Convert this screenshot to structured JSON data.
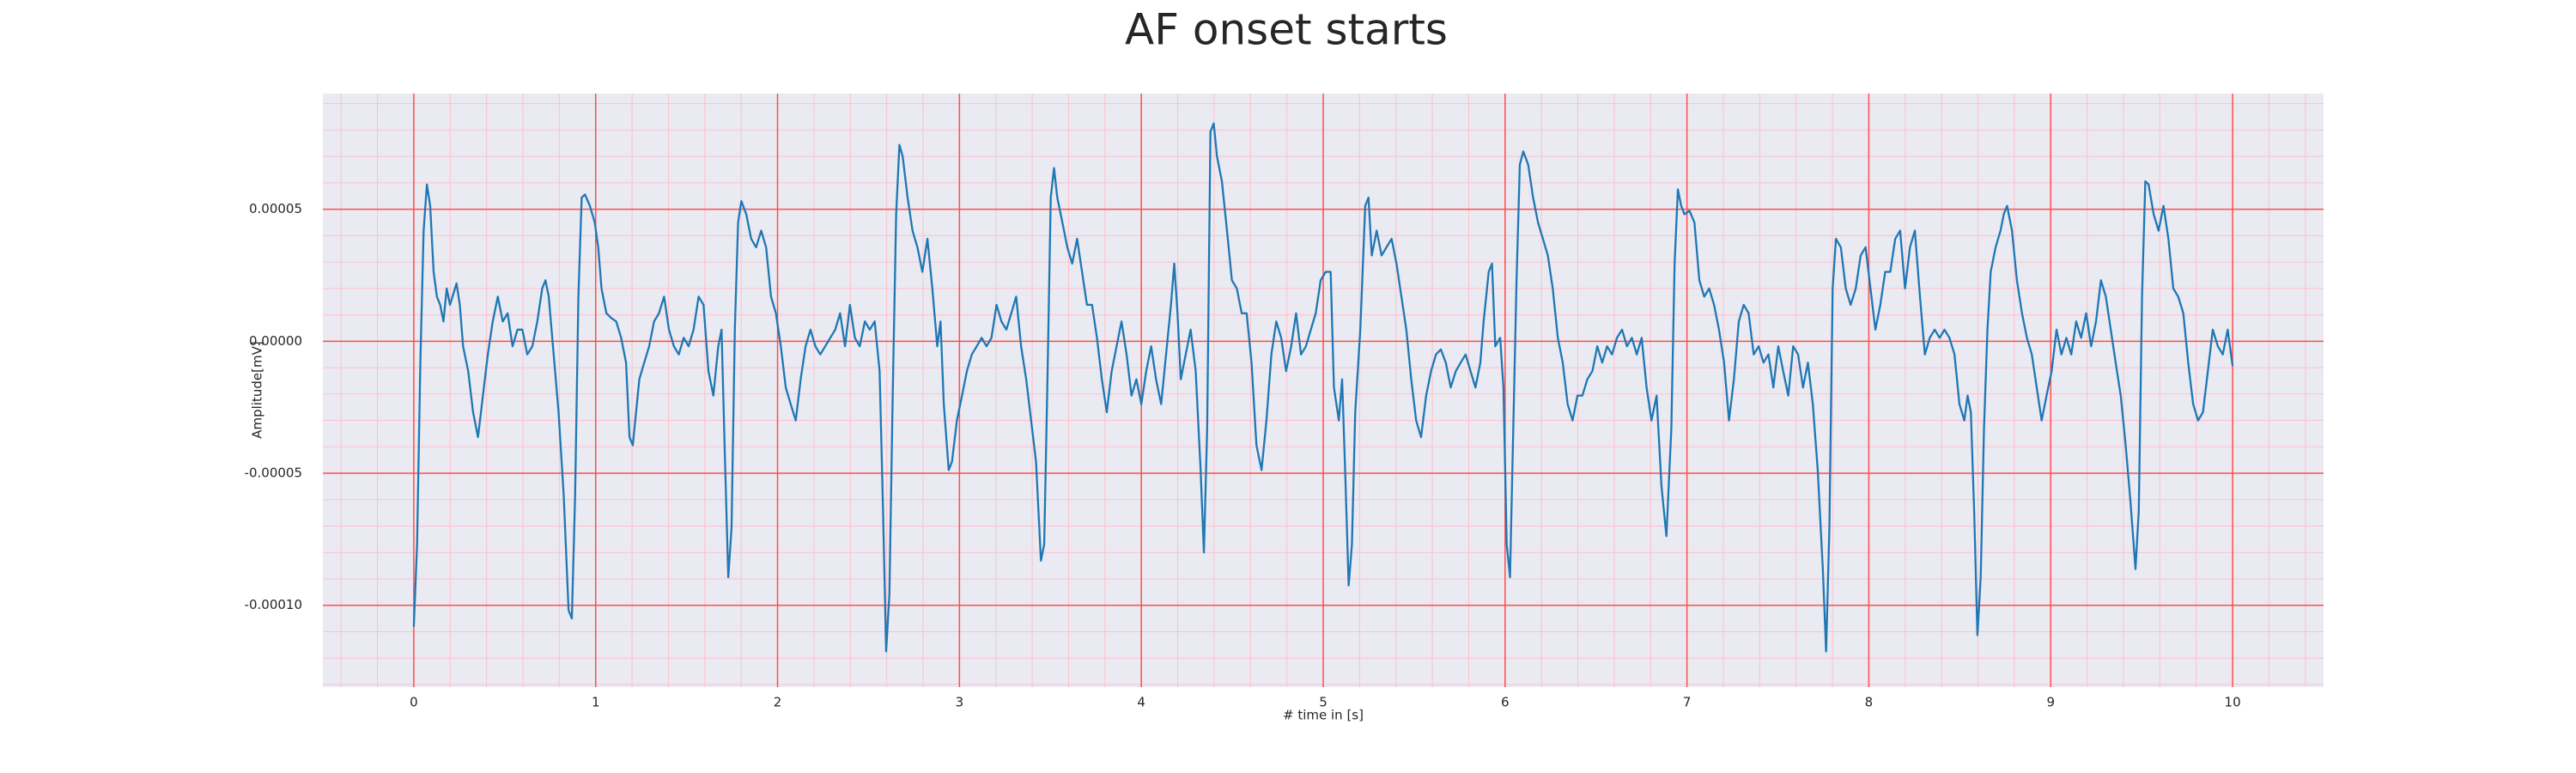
{
  "chart_data": {
    "type": "line",
    "title": "AF onset starts",
    "xlabel": "# time in [s]",
    "ylabel": "Amplitude[mV]",
    "color": "#1f77b4",
    "background": "#eaeaf2",
    "grid": true,
    "grid_color": "#ff4d4d",
    "minor_grid": true,
    "minor_grid_color": "#ffc0cb",
    "minor_divisions": 5,
    "xlim": [
      -0.5,
      10.5
    ],
    "xticks": [
      0,
      1,
      2,
      3,
      4,
      5,
      6,
      7,
      8,
      9,
      10
    ],
    "ylim": [
      -0.000131,
      9.38e-05
    ],
    "yticks": [
      {
        "value": -0.0001,
        "label": "-0.00010"
      },
      {
        "value": -5e-05,
        "label": "-0.00005"
      },
      {
        "value": 0,
        "label": "0.00000"
      },
      {
        "value": 5e-05,
        "label": "0.00005"
      }
    ],
    "x": [
      0,
      0.018,
      0.036,
      0.054,
      0.072,
      0.09,
      0.109,
      0.127,
      0.145,
      0.163,
      0.181,
      0.199,
      0.235,
      0.253,
      0.271,
      0.299,
      0.326,
      0.353,
      0.38,
      0.407,
      0.434,
      0.462,
      0.489,
      0.516,
      0.543,
      0.57,
      0.597,
      0.624,
      0.652,
      0.679,
      0.706,
      0.724,
      0.742,
      0.769,
      0.796,
      0.824,
      0.851,
      0.869,
      0.887,
      0.905,
      0.923,
      0.941,
      0.968,
      0.995,
      1.014,
      1.032,
      1.059,
      1.086,
      1.113,
      1.14,
      1.167,
      1.186,
      1.204,
      1.222,
      1.24,
      1.267,
      1.294,
      1.321,
      1.348,
      1.376,
      1.403,
      1.43,
      1.457,
      1.484,
      1.511,
      1.538,
      1.566,
      1.593,
      1.62,
      1.647,
      1.674,
      1.692,
      1.71,
      1.729,
      1.747,
      1.765,
      1.783,
      1.801,
      1.828,
      1.855,
      1.882,
      1.91,
      1.937,
      1.964,
      1.991,
      2.018,
      2.045,
      2.072,
      2.1,
      2.127,
      2.154,
      2.181,
      2.208,
      2.235,
      2.262,
      2.29,
      2.317,
      2.344,
      2.371,
      2.398,
      2.425,
      2.452,
      2.48,
      2.507,
      2.534,
      2.561,
      2.579,
      2.597,
      2.615,
      2.633,
      2.652,
      2.67,
      2.688,
      2.715,
      2.742,
      2.769,
      2.796,
      2.824,
      2.851,
      2.878,
      2.896,
      2.914,
      2.941,
      2.959,
      2.986,
      3.014,
      3.041,
      3.068,
      3.095,
      3.122,
      3.149,
      3.176,
      3.204,
      3.231,
      3.258,
      3.285,
      3.312,
      3.339,
      3.367,
      3.394,
      3.421,
      3.448,
      3.466,
      3.484,
      3.502,
      3.52,
      3.538,
      3.566,
      3.593,
      3.62,
      3.647,
      3.674,
      3.701,
      3.729,
      3.756,
      3.783,
      3.81,
      3.837,
      3.864,
      3.891,
      3.919,
      3.946,
      3.973,
      4.0,
      4.027,
      4.054,
      4.081,
      4.109,
      4.136,
      4.163,
      4.181,
      4.199,
      4.217,
      4.244,
      4.271,
      4.299,
      4.326,
      4.344,
      4.362,
      4.38,
      4.398,
      4.416,
      4.443,
      4.471,
      4.498,
      4.525,
      4.552,
      4.579,
      4.606,
      4.633,
      4.661,
      4.688,
      4.715,
      4.742,
      4.769,
      4.796,
      4.824,
      4.851,
      4.878,
      4.905,
      4.932,
      4.959,
      4.986,
      5.014,
      5.041,
      5.059,
      5.086,
      5.104,
      5.122,
      5.14,
      5.158,
      5.176,
      5.204,
      5.231,
      5.249,
      5.267,
      5.294,
      5.321,
      5.348,
      5.376,
      5.403,
      5.43,
      5.457,
      5.484,
      5.511,
      5.538,
      5.566,
      5.593,
      5.62,
      5.647,
      5.674,
      5.701,
      5.729,
      5.756,
      5.783,
      5.81,
      5.837,
      5.864,
      5.882,
      5.91,
      5.928,
      5.946,
      5.973,
      5.991,
      6.009,
      6.027,
      6.045,
      6.063,
      6.081,
      6.1,
      6.127,
      6.154,
      6.181,
      6.208,
      6.235,
      6.262,
      6.29,
      6.317,
      6.344,
      6.371,
      6.398,
      6.425,
      6.452,
      6.48,
      6.507,
      6.534,
      6.561,
      6.588,
      6.615,
      6.643,
      6.67,
      6.697,
      6.724,
      6.751,
      6.778,
      6.805,
      6.833,
      6.86,
      6.887,
      6.914,
      6.932,
      6.95,
      6.968,
      6.986,
      7.014,
      7.041,
      7.068,
      7.095,
      7.122,
      7.149,
      7.176,
      7.204,
      7.231,
      7.258,
      7.285,
      7.312,
      7.339,
      7.367,
      7.394,
      7.421,
      7.448,
      7.475,
      7.502,
      7.529,
      7.557,
      7.584,
      7.611,
      7.638,
      7.665,
      7.692,
      7.719,
      7.747,
      7.765,
      7.783,
      7.801,
      7.819,
      7.846,
      7.873,
      7.9,
      7.928,
      7.955,
      7.982,
      8.009,
      8.036,
      8.063,
      8.09,
      8.118,
      8.145,
      8.172,
      8.199,
      8.226,
      8.253,
      8.281,
      8.308,
      8.335,
      8.362,
      8.389,
      8.416,
      8.443,
      8.471,
      8.498,
      8.525,
      8.543,
      8.561,
      8.579,
      8.597,
      8.615,
      8.633,
      8.652,
      8.67,
      8.697,
      8.724,
      8.742,
      8.76,
      8.787,
      8.814,
      8.842,
      8.869,
      8.896,
      8.923,
      8.95,
      8.977,
      9.005,
      9.032,
      9.059,
      9.086,
      9.113,
      9.14,
      9.167,
      9.195,
      9.222,
      9.249,
      9.276,
      9.303,
      9.33,
      9.357,
      9.385,
      9.412,
      9.439,
      9.466,
      9.484,
      9.502,
      9.52,
      9.538,
      9.566,
      9.593,
      9.62,
      9.647,
      9.674,
      9.701,
      9.729,
      9.756,
      9.783,
      9.81,
      9.837,
      9.864,
      9.891,
      9.919,
      9.946,
      9.973,
      10.0
    ],
    "values": [
      -0.0001081,
      -7.69e-05,
      -8.1e-06,
      4.19e-05,
      5.94e-05,
      5.13e-05,
      2.63e-05,
      1.69e-05,
      1.38e-05,
      7.5e-06,
      2e-05,
      1.38e-05,
      2.19e-05,
      1.38e-05,
      -1.9e-06,
      -1.13e-05,
      -2.69e-05,
      -3.63e-05,
      -2.06e-05,
      -5e-06,
      7.5e-06,
      1.69e-05,
      7.5e-06,
      1.06e-05,
      -1.9e-06,
      4.4e-06,
      4.4e-06,
      -5e-06,
      -1.9e-06,
      7.5e-06,
      2e-05,
      2.31e-05,
      1.69e-05,
      -5e-06,
      -2.69e-05,
      -5.81e-05,
      -0.0001019,
      -0.000105,
      -5.81e-05,
      1.69e-05,
      5.44e-05,
      5.56e-05,
      5.13e-05,
      4.5e-05,
      3.56e-05,
      2e-05,
      1.06e-05,
      8.8e-06,
      7.5e-06,
      1.3e-06,
      -8.1e-06,
      -3.63e-05,
      -3.94e-05,
      -2.69e-05,
      -1.44e-05,
      -8.1e-06,
      -1.9e-06,
      7.5e-06,
      1.06e-05,
      1.69e-05,
      4.4e-06,
      -1.9e-06,
      -5e-06,
      1.3e-06,
      -1.9e-06,
      4.4e-06,
      1.69e-05,
      1.38e-05,
      -1.13e-05,
      -2.06e-05,
      -1.9e-06,
      4.4e-06,
      -4.25e-05,
      -8.94e-05,
      -7.06e-05,
      4.4e-06,
      4.5e-05,
      5.31e-05,
      4.81e-05,
      3.88e-05,
      3.56e-05,
      4.19e-05,
      3.56e-05,
      1.69e-05,
      1.06e-05,
      -1.9e-06,
      -1.75e-05,
      -2.38e-05,
      -3e-05,
      -1.44e-05,
      -1.9e-06,
      4.4e-06,
      -1.9e-06,
      -5e-06,
      -1.9e-06,
      1.3e-06,
      4.4e-06,
      1.06e-05,
      -1.9e-06,
      1.38e-05,
      1.3e-06,
      -1.9e-06,
      7.5e-06,
      4.4e-06,
      7.5e-06,
      -1.13e-05,
      -6.13e-05,
      -0.0001175,
      -9.56e-05,
      -2.06e-05,
      4.81e-05,
      7.44e-05,
      7e-05,
      5.44e-05,
      4.19e-05,
      3.56e-05,
      2.63e-05,
      3.88e-05,
      2e-05,
      -1.9e-06,
      7.5e-06,
      -2.38e-05,
      -4.88e-05,
      -4.56e-05,
      -3e-05,
      -2.06e-05,
      -1.13e-05,
      -5e-06,
      -1.9e-06,
      1.3e-06,
      -1.9e-06,
      1.3e-06,
      1.38e-05,
      7.5e-06,
      4.4e-06,
      1.06e-05,
      1.69e-05,
      -1.9e-06,
      -1.44e-05,
      -3e-05,
      -4.56e-05,
      -8.31e-05,
      -7.69e-05,
      -1.44e-05,
      5.44e-05,
      6.56e-05,
      5.44e-05,
      4.5e-05,
      3.56e-05,
      2.94e-05,
      3.88e-05,
      2.63e-05,
      1.38e-05,
      1.38e-05,
      1.3e-06,
      -1.44e-05,
      -2.69e-05,
      -1.13e-05,
      -1.9e-06,
      7.5e-06,
      -5e-06,
      -2.06e-05,
      -1.44e-05,
      -2.38e-05,
      -1.13e-05,
      -1.9e-06,
      -1.44e-05,
      -2.38e-05,
      -5e-06,
      1.38e-05,
      2.94e-05,
      1.06e-05,
      -1.44e-05,
      -5e-06,
      4.4e-06,
      -1.13e-05,
      -4.88e-05,
      -8e-05,
      -3.31e-05,
      7.94e-05,
      8.25e-05,
      7e-05,
      6.06e-05,
      4.19e-05,
      2.31e-05,
      2e-05,
      1.06e-05,
      1.06e-05,
      -8.1e-06,
      -3.94e-05,
      -4.88e-05,
      -3e-05,
      -5e-06,
      7.5e-06,
      1.3e-06,
      -1.13e-05,
      -1.9e-06,
      1.06e-05,
      -5e-06,
      -1.9e-06,
      4.4e-06,
      1.06e-05,
      2.31e-05,
      2.63e-05,
      2.63e-05,
      -1.75e-05,
      -3e-05,
      -1.44e-05,
      -5.19e-05,
      -9.25e-05,
      -7.69e-05,
      -2.69e-05,
      4.4e-06,
      5.13e-05,
      5.44e-05,
      3.25e-05,
      4.19e-05,
      3.25e-05,
      3.56e-05,
      3.88e-05,
      2.94e-05,
      1.69e-05,
      4.4e-06,
      -1.44e-05,
      -3e-05,
      -3.63e-05,
      -2.06e-05,
      -1.13e-05,
      -5e-06,
      -3.1e-06,
      -8.1e-06,
      -1.75e-05,
      -1.13e-05,
      -8.1e-06,
      -5e-06,
      -1.13e-05,
      -1.75e-05,
      -8.1e-06,
      7.5e-06,
      2.63e-05,
      2.94e-05,
      -1.9e-06,
      1.3e-06,
      -1.75e-05,
      -7.69e-05,
      -8.94e-05,
      -3.31e-05,
      2.31e-05,
      6.69e-05,
      7.19e-05,
      6.69e-05,
      5.44e-05,
      4.5e-05,
      3.88e-05,
      3.25e-05,
      2e-05,
      1.3e-06,
      -8.1e-06,
      -2.38e-05,
      -3e-05,
      -2.06e-05,
      -2.06e-05,
      -1.44e-05,
      -1.13e-05,
      -1.9e-06,
      -8.1e-06,
      -1.9e-06,
      -5e-06,
      1.3e-06,
      4.4e-06,
      -1.9e-06,
      1.3e-06,
      -5e-06,
      1.3e-06,
      -1.75e-05,
      -3e-05,
      -2.06e-05,
      -5.5e-05,
      -7.38e-05,
      -3.31e-05,
      2.94e-05,
      5.75e-05,
      5.13e-05,
      4.81e-05,
      4.94e-05,
      4.5e-05,
      2.31e-05,
      1.69e-05,
      2e-05,
      1.38e-05,
      4.4e-06,
      -8.1e-06,
      -3e-05,
      -1.44e-05,
      7.5e-06,
      1.38e-05,
      1.06e-05,
      -5e-06,
      -1.9e-06,
      -8.1e-06,
      -5e-06,
      -1.75e-05,
      -1.9e-06,
      -1.13e-05,
      -2.06e-05,
      -1.9e-06,
      -5e-06,
      -1.75e-05,
      -8.1e-06,
      -2.38e-05,
      -4.88e-05,
      -8.63e-05,
      -0.0001175,
      -7.06e-05,
      2e-05,
      3.88e-05,
      3.56e-05,
      2e-05,
      1.38e-05,
      2e-05,
      3.25e-05,
      3.56e-05,
      2e-05,
      4.4e-06,
      1.38e-05,
      2.63e-05,
      2.63e-05,
      3.88e-05,
      4.19e-05,
      2e-05,
      3.56e-05,
      4.19e-05,
      1.69e-05,
      -5e-06,
      1.3e-06,
      4.4e-06,
      1.3e-06,
      4.4e-06,
      1.3e-06,
      -5e-06,
      -2.38e-05,
      -3e-05,
      -2.06e-05,
      -2.69e-05,
      -6.44e-05,
      -0.0001113,
      -8.94e-05,
      -3.31e-05,
      4.4e-06,
      2.63e-05,
      3.56e-05,
      4.19e-05,
      4.81e-05,
      5.13e-05,
      4.19e-05,
      2.31e-05,
      1.06e-05,
      1.3e-06,
      -5e-06,
      -1.75e-05,
      -3e-05,
      -2.06e-05,
      -1.13e-05,
      4.4e-06,
      -5e-06,
      1.3e-06,
      -5e-06,
      7.5e-06,
      1.3e-06,
      1.06e-05,
      -1.9e-06,
      7.5e-06,
      2.31e-05,
      1.69e-05,
      4.4e-06,
      -8.1e-06,
      -2.06e-05,
      -3.94e-05,
      -6.13e-05,
      -8.63e-05,
      -6.44e-05,
      1.69e-05,
      6.06e-05,
      5.94e-05,
      4.81e-05,
      4.19e-05,
      5.13e-05,
      3.88e-05,
      2e-05,
      1.69e-05,
      1.06e-05,
      -8.1e-06,
      -2.38e-05,
      -3e-05,
      -2.69e-05,
      -1.13e-05,
      4.4e-06,
      -1.9e-06,
      -5e-06,
      4.4e-06,
      -9.4e-06
    ]
  }
}
